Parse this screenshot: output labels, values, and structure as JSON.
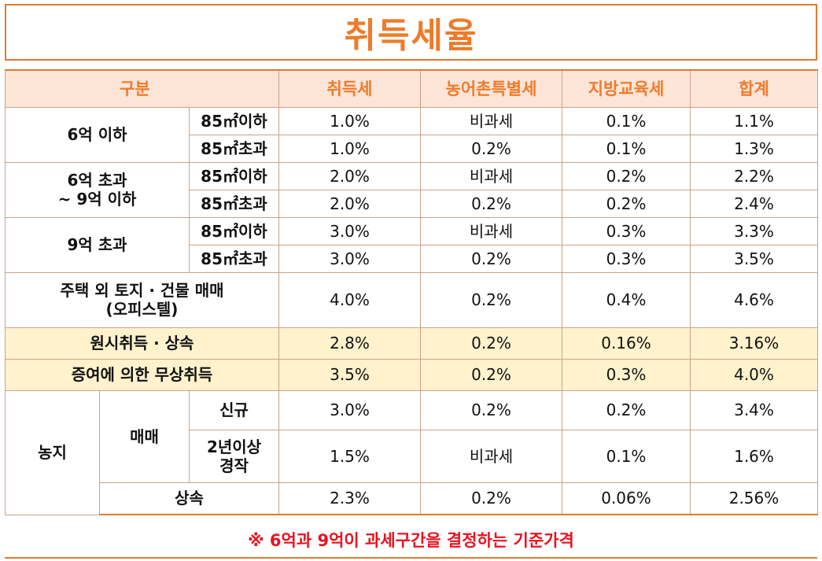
{
  "title": "취득세율",
  "header": {
    "category": "구분",
    "acquisition_tax": "취득세",
    "rural_special_tax": "농어촌특별세",
    "local_education_tax": "지방교육세",
    "total": "합계"
  },
  "rows": {
    "r1": {
      "group": "6억 이하",
      "size": "85㎡이하",
      "acq": "1.0%",
      "rural": "비과세",
      "edu": "0.1%",
      "total": "1.1%"
    },
    "r2": {
      "size": "85㎡초과",
      "acq": "1.0%",
      "rural": "0.2%",
      "edu": "0.1%",
      "total": "1.3%"
    },
    "r3": {
      "group_line1": "6억 초과",
      "group_line2": "~ 9억 이하",
      "size": "85㎡이하",
      "acq": "2.0%",
      "rural": "비과세",
      "edu": "0.2%",
      "total": "2.2%"
    },
    "r4": {
      "size": "85㎡초과",
      "acq": "2.0%",
      "rural": "0.2%",
      "edu": "0.2%",
      "total": "2.4%"
    },
    "r5": {
      "group": "9억 초과",
      "size": "85㎡이하",
      "acq": "3.0%",
      "rural": "비과세",
      "edu": "0.3%",
      "total": "3.3%"
    },
    "r6": {
      "size": "85㎡초과",
      "acq": "3.0%",
      "rural": "0.2%",
      "edu": "0.3%",
      "total": "3.5%"
    },
    "r7": {
      "label_line1": "주택 외 토지 · 건물 매매",
      "label_line2": "(오피스텔)",
      "acq": "4.0%",
      "rural": "0.2%",
      "edu": "0.4%",
      "total": "4.6%"
    },
    "r8": {
      "label": "원시취득 · 상속",
      "acq": "2.8%",
      "rural": "0.2%",
      "edu": "0.16%",
      "total": "3.16%"
    },
    "r9": {
      "label": "증여에 의한 무상취득",
      "acq": "3.5%",
      "rural": "0.2%",
      "edu": "0.3%",
      "total": "4.0%"
    },
    "r10": {
      "group": "농지",
      "sub": "매매",
      "item": "신규",
      "acq": "3.0%",
      "rural": "0.2%",
      "edu": "0.2%",
      "total": "3.4%"
    },
    "r11": {
      "item_line1": "2년이상",
      "item_line2": "경작",
      "acq": "1.5%",
      "rural": "비과세",
      "edu": "0.1%",
      "total": "1.6%"
    },
    "r12": {
      "item": "상속",
      "acq": "2.3%",
      "rural": "0.2%",
      "edu": "0.06%",
      "total": "2.56%"
    }
  },
  "note": "※ 6억과 9억이 과세구간을 결정하는 기준가격",
  "colors": {
    "accent": "#ee7b2b",
    "header_bg": "#fce5d6",
    "highlight_bg": "#fff2cc",
    "note_text": "#e8121f"
  }
}
